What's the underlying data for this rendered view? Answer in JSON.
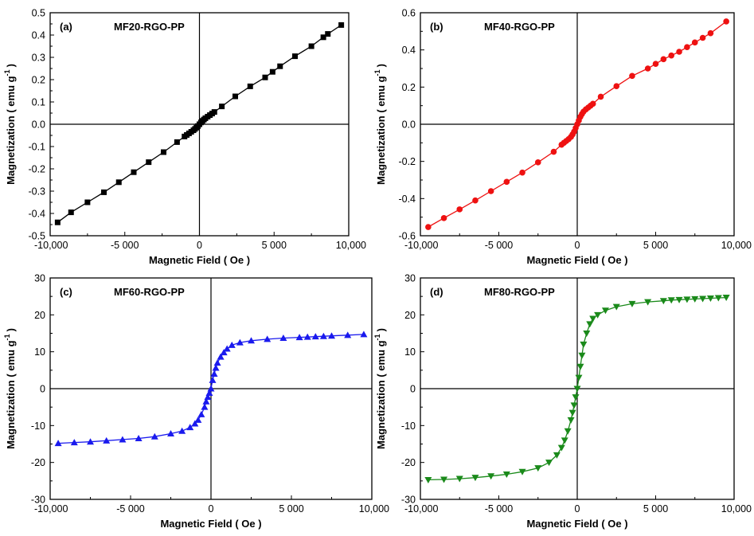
{
  "chart_data": [
    {
      "type": "line",
      "panel_label": "(a)",
      "title": "MF20-RGO-PP",
      "xlabel": "Magnetic Field ( Oe )",
      "ylabel_main": "Magnetization ( emu g",
      "ylabel_sup": "-1",
      "ylabel_end": ")",
      "xlim": [
        -10000,
        10000
      ],
      "ylim": [
        -0.5,
        0.5
      ],
      "xticks": [
        -10000,
        -5000,
        0,
        5000,
        10000
      ],
      "xtick_labels": [
        "-10,000",
        "-5 000",
        "0",
        "5 000",
        "10,000"
      ],
      "yticks": [
        -0.5,
        -0.4,
        -0.3,
        -0.2,
        -0.1,
        0.0,
        0.1,
        0.2,
        0.3,
        0.4,
        0.5
      ],
      "ytick_labels": [
        "-0.5",
        "-0.4",
        "-0.3",
        "-0.2",
        "-0.1",
        "0.0",
        "0.1",
        "0.2",
        "0.3",
        "0.4",
        "0.5"
      ],
      "grid": false,
      "color": "#000000",
      "marker": "square",
      "series": [
        {
          "x": [
            -9500,
            -8600,
            -7500,
            -6400,
            -5400,
            -4400,
            -3400,
            -2400,
            -1500,
            -1000,
            -850,
            -700,
            -550,
            -400,
            -300,
            -200,
            -100,
            0,
            100,
            200,
            300,
            400,
            550,
            700,
            850,
            1000,
            1500,
            2400,
            3400,
            4400,
            4900,
            5400,
            6400,
            7500,
            8300,
            8600,
            9500
          ],
          "y": [
            -0.44,
            -0.395,
            -0.35,
            -0.305,
            -0.26,
            -0.215,
            -0.17,
            -0.125,
            -0.08,
            -0.055,
            -0.048,
            -0.041,
            -0.034,
            -0.027,
            -0.021,
            -0.015,
            -0.008,
            0.0,
            0.008,
            0.015,
            0.021,
            0.027,
            0.034,
            0.041,
            0.048,
            0.055,
            0.08,
            0.125,
            0.17,
            0.21,
            0.235,
            0.26,
            0.305,
            0.35,
            0.39,
            0.405,
            0.445
          ]
        }
      ]
    },
    {
      "type": "line",
      "panel_label": "(b)",
      "title": "MF40-RGO-PP",
      "xlabel": "Magnetic Field ( Oe )",
      "ylabel_main": "Magnetization ( emu g",
      "ylabel_sup": "-1",
      "ylabel_end": ")",
      "xlim": [
        -10000,
        10000
      ],
      "ylim": [
        -0.6,
        0.6
      ],
      "xticks": [
        -10000,
        -5000,
        0,
        5000,
        10000
      ],
      "xtick_labels": [
        "-10,000",
        "-5 000",
        "0",
        "5 000",
        "10,000"
      ],
      "yticks": [
        -0.6,
        -0.4,
        -0.2,
        0.0,
        0.2,
        0.4,
        0.6
      ],
      "ytick_labels": [
        "-0.6",
        "-0.4",
        "-0.2",
        "0.0",
        "0.2",
        "0.4",
        "0.6"
      ],
      "grid": false,
      "color": "#ee1111",
      "marker": "circle",
      "series": [
        {
          "x": [
            -9500,
            -8500,
            -7500,
            -6500,
            -5500,
            -4500,
            -3500,
            -2500,
            -1500,
            -1000,
            -850,
            -700,
            -550,
            -400,
            -300,
            -200,
            -100,
            0,
            100,
            200,
            300,
            400,
            550,
            700,
            850,
            1000,
            1500,
            2500,
            3500,
            4500,
            5000,
            5500,
            6000,
            6500,
            7000,
            7500,
            8000,
            8500,
            9500
          ],
          "y": [
            -0.553,
            -0.505,
            -0.458,
            -0.41,
            -0.36,
            -0.31,
            -0.26,
            -0.205,
            -0.148,
            -0.11,
            -0.1,
            -0.09,
            -0.08,
            -0.068,
            -0.055,
            -0.04,
            -0.02,
            0.0,
            0.02,
            0.04,
            0.055,
            0.068,
            0.08,
            0.09,
            0.1,
            0.11,
            0.148,
            0.205,
            0.26,
            0.3,
            0.325,
            0.35,
            0.37,
            0.39,
            0.415,
            0.44,
            0.465,
            0.49,
            0.553
          ]
        }
      ]
    },
    {
      "type": "line",
      "panel_label": "(c)",
      "title": "MF60-RGO-PP",
      "xlabel": "Magnetic Field ( Oe )",
      "ylabel_main": "Magnetization ( emu g",
      "ylabel_sup": "-1",
      "ylabel_end": ")",
      "xlim": [
        -10000,
        10000
      ],
      "ylim": [
        -30,
        30
      ],
      "xticks": [
        -10000,
        -5000,
        0,
        5000,
        10000
      ],
      "xtick_labels": [
        "-10,000",
        "-5 000",
        "0",
        "5 000",
        "10,000"
      ],
      "yticks": [
        -30,
        -20,
        -10,
        0,
        10,
        20,
        30
      ],
      "ytick_labels": [
        "-30",
        "-20",
        "-10",
        "0",
        "10",
        "20",
        "30"
      ],
      "grid": false,
      "color": "#1a1aee",
      "marker": "triangle-up",
      "series": [
        {
          "x": [
            -9500,
            -8500,
            -7500,
            -6500,
            -5500,
            -4500,
            -3500,
            -2500,
            -1800,
            -1300,
            -1000,
            -800,
            -600,
            -400,
            -300,
            -200,
            -100,
            0,
            100,
            200,
            300,
            400,
            600,
            800,
            1000,
            1300,
            1800,
            2500,
            3500,
            4500,
            5500,
            6000,
            6500,
            7000,
            7500,
            8500,
            9500
          ],
          "y": [
            -14.8,
            -14.6,
            -14.4,
            -14.1,
            -13.8,
            -13.5,
            -13.0,
            -12.2,
            -11.5,
            -10.5,
            -9.5,
            -8.5,
            -7.0,
            -5.0,
            -3.5,
            -2.3,
            -1.2,
            0.0,
            2.3,
            4.0,
            5.6,
            7.0,
            8.6,
            9.8,
            10.8,
            11.8,
            12.5,
            13.0,
            13.4,
            13.7,
            13.9,
            14.0,
            14.1,
            14.2,
            14.3,
            14.5,
            14.7
          ]
        }
      ]
    },
    {
      "type": "line",
      "panel_label": "(d)",
      "title": "MF80-RGO-PP",
      "xlabel": "Magnetic Field ( Oe )",
      "ylabel_main": "Magnetization ( emu g",
      "ylabel_sup": "-1",
      "ylabel_end": ")",
      "xlim": [
        -10000,
        10000
      ],
      "ylim": [
        -30,
        30
      ],
      "xticks": [
        -10000,
        -5000,
        0,
        5000,
        10000
      ],
      "xtick_labels": [
        "-10,000",
        "-5 000",
        "0",
        "5 000",
        "10,000"
      ],
      "yticks": [
        -30,
        -20,
        -10,
        0,
        10,
        20,
        30
      ],
      "ytick_labels": [
        "-30",
        "-20",
        "-10",
        "0",
        "10",
        "20",
        "30"
      ],
      "grid": false,
      "color": "#1a8a1a",
      "marker": "triangle-down",
      "series": [
        {
          "x": [
            -9500,
            -8500,
            -7500,
            -6500,
            -5500,
            -4500,
            -3500,
            -2500,
            -1800,
            -1300,
            -1000,
            -800,
            -600,
            -400,
            -300,
            -200,
            -100,
            0,
            100,
            200,
            300,
            400,
            600,
            800,
            1000,
            1300,
            1800,
            2500,
            3500,
            4500,
            5500,
            6000,
            6500,
            7000,
            7500,
            8000,
            8500,
            9000,
            9500
          ],
          "y": [
            -24.7,
            -24.6,
            -24.4,
            -24.1,
            -23.7,
            -23.2,
            -22.5,
            -21.5,
            -20.0,
            -18.0,
            -16.0,
            -14.0,
            -11.5,
            -8.5,
            -6.5,
            -4.5,
            -2.3,
            0.0,
            3.0,
            6.0,
            9.0,
            12.0,
            15.0,
            17.5,
            19.0,
            20.0,
            21.2,
            22.2,
            23.0,
            23.5,
            23.8,
            24.0,
            24.1,
            24.2,
            24.3,
            24.4,
            24.5,
            24.6,
            24.7
          ]
        }
      ]
    }
  ]
}
